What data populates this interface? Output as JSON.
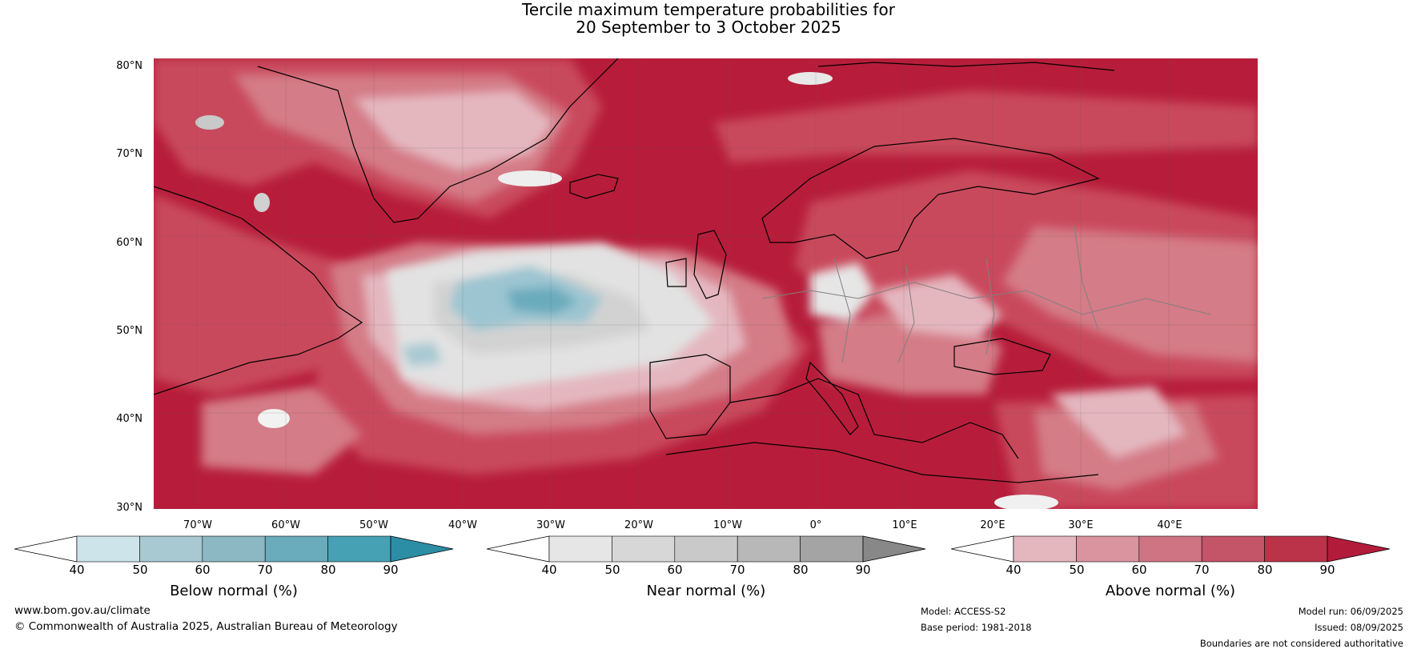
{
  "title": {
    "line1": "Tercile maximum temperature probabilities for",
    "line2": "20 September to 3 October 2025"
  },
  "map": {
    "region": "North Atlantic and Europe",
    "lat_labels": [
      "80°N",
      "70°N",
      "60°N",
      "50°N",
      "40°N",
      "30°N"
    ],
    "lon_labels": [
      "70°W",
      "60°W",
      "50°W",
      "40°W",
      "30°W",
      "20°W",
      "10°W",
      "0°",
      "10°E",
      "20°E",
      "30°E",
      "40°E"
    ],
    "dominant_signal": "Above normal",
    "colors": {
      "above_dominant": "#b71d3a",
      "above_mid": "#c94a5c",
      "above_light": "#d47b87",
      "near_normal": "#e2e2e2",
      "below_normal": "#7fb3c4",
      "land_outline": "#000000",
      "border": "#808080"
    }
  },
  "legends": [
    {
      "id": "below",
      "title": "Below normal (%)",
      "ticks": [
        "40",
        "50",
        "60",
        "70",
        "80",
        "90"
      ],
      "colors": [
        "#ffffff",
        "#cce4ea",
        "#a9c9d2",
        "#8bb8c3",
        "#6aabbc",
        "#47a1b4",
        "#2b8ea5"
      ]
    },
    {
      "id": "near",
      "title": "Near normal (%)",
      "ticks": [
        "40",
        "50",
        "60",
        "70",
        "80",
        "90"
      ],
      "colors": [
        "#ffffff",
        "#e6e6e6",
        "#d7d7d7",
        "#c9c9c9",
        "#b8b8b8",
        "#a4a4a4",
        "#888888"
      ]
    },
    {
      "id": "above",
      "title": "Above normal (%)",
      "ticks": [
        "40",
        "50",
        "60",
        "70",
        "80",
        "90"
      ],
      "colors": [
        "#ffffff",
        "#e4b7bf",
        "#d9949f",
        "#cf7483",
        "#c45468",
        "#ba3349",
        "#b21b3a"
      ]
    }
  ],
  "footer": {
    "website": "www.bom.gov.au/climate",
    "copyright": "© Commonwealth of Australia 2025, Australian Bureau of Meteorology",
    "model": "Model: ACCESS-S2",
    "base_period": "Base period: 1981-2018",
    "model_run": "Model run: 06/09/2025",
    "issued": "Issued: 08/09/2025",
    "disclaimer": "Boundaries are not considered authoritative"
  }
}
